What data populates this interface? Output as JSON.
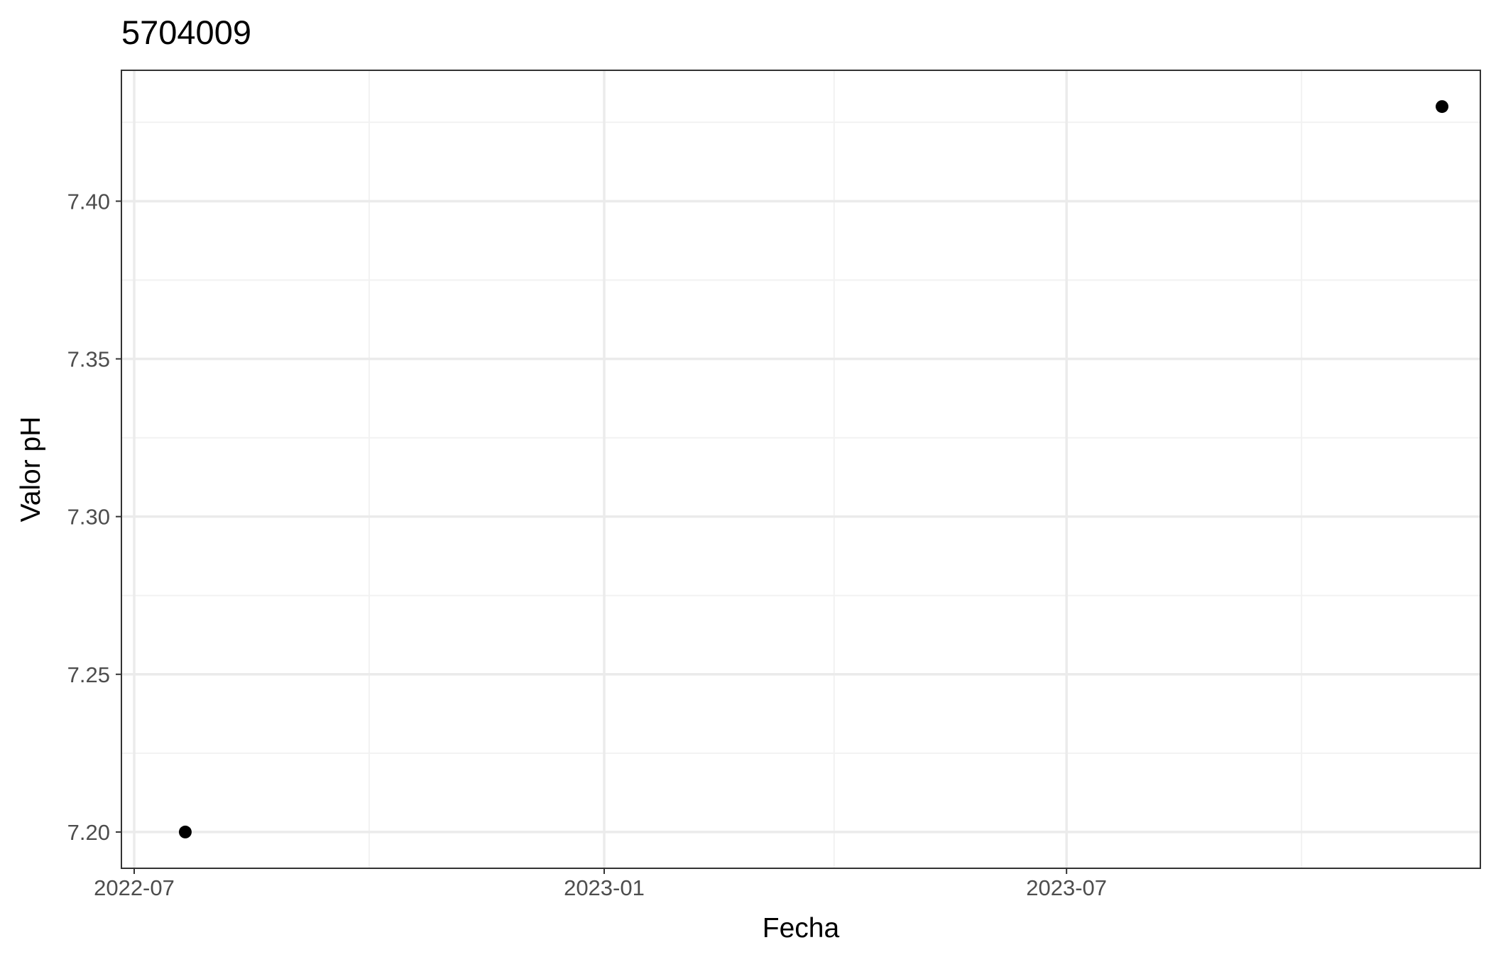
{
  "chart_data": {
    "type": "scatter",
    "title": "5704009",
    "xlabel": "Fecha",
    "ylabel": "Valor pH",
    "x_axis_type": "date",
    "xlim": [
      "2022-06-26",
      "2023-12-10"
    ],
    "ylim": [
      7.1885,
      7.4415
    ],
    "x_ticks": {
      "labels": [
        "2022-07",
        "2023-01",
        "2023-07"
      ],
      "values": [
        "2022-07-01",
        "2023-01-01",
        "2023-07-01"
      ]
    },
    "x_minor_gridlines": [
      "2022-10-01",
      "2023-04-01",
      "2023-10-01"
    ],
    "y_ticks": {
      "labels": [
        "7.20",
        "7.25",
        "7.30",
        "7.35",
        "7.40"
      ],
      "values": [
        7.2,
        7.25,
        7.3,
        7.35,
        7.4
      ]
    },
    "y_minor_gridlines": [
      7.225,
      7.275,
      7.325,
      7.375,
      7.425
    ],
    "points": [
      {
        "x": "2022-07-21",
        "y": 7.2
      },
      {
        "x": "2023-11-25",
        "y": 7.43
      }
    ],
    "grid": true,
    "legend": "none",
    "colors": {
      "point": "#000000",
      "grid_major": "#ebebeb",
      "grid_minor": "#f2f2f2",
      "panel_border": "#333333",
      "tick_label": "#4d4d4d",
      "background": "#ffffff"
    }
  }
}
